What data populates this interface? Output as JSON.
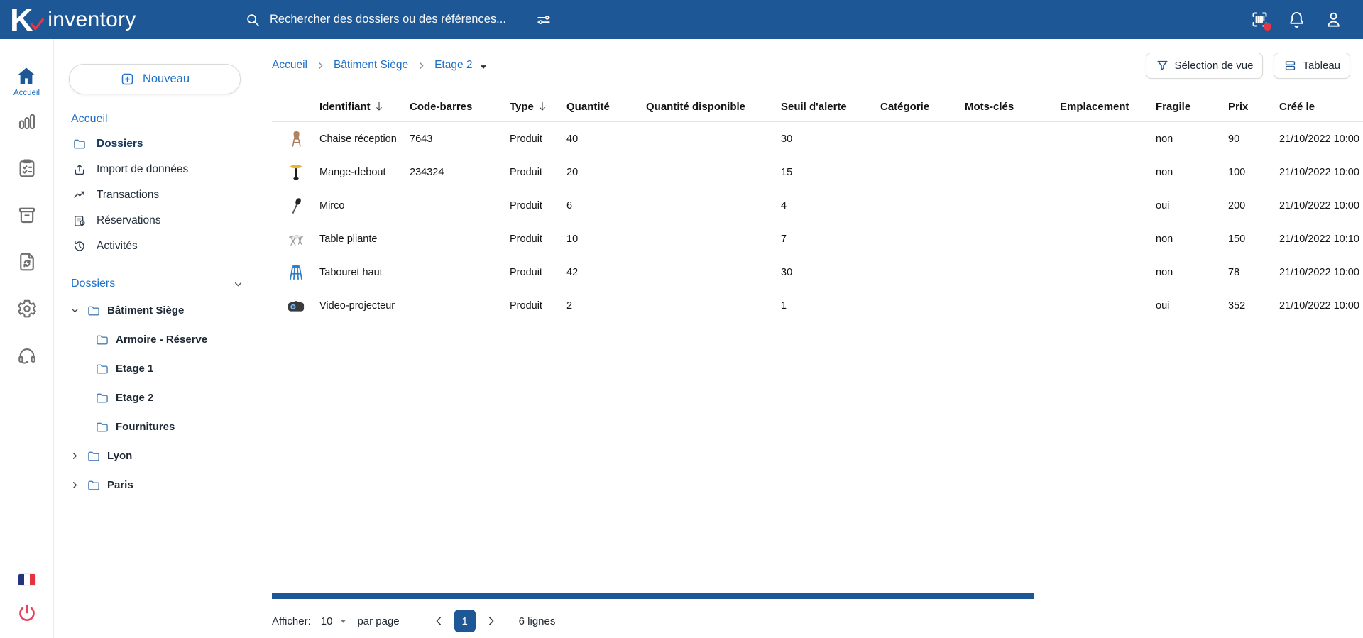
{
  "app": {
    "logo_k": "K",
    "logo_name": "inventory"
  },
  "topbar": {
    "search_placeholder": "Rechercher des dossiers ou des références...",
    "right_icons": [
      "barcode-scanner-icon",
      "notifications-bell-icon",
      "account-icon"
    ]
  },
  "rail": {
    "items": [
      {
        "icon": "home-icon",
        "label": "Accueil",
        "active": true
      },
      {
        "icon": "bar-chart-icon"
      },
      {
        "icon": "checklist-icon"
      },
      {
        "icon": "archive-box-icon"
      },
      {
        "icon": "sync-file-icon"
      },
      {
        "icon": "settings-gear-icon"
      },
      {
        "icon": "headset-icon"
      }
    ],
    "flag": "french-flag",
    "power": "power-icon"
  },
  "sidebar": {
    "new_button_label": "Nouveau",
    "nav_title": "Accueil",
    "nav_items": [
      {
        "icon": "folder-icon",
        "label": "Dossiers",
        "active": true
      },
      {
        "icon": "upload-icon",
        "label": "Import de données"
      },
      {
        "icon": "trend-icon",
        "label": "Transactions"
      },
      {
        "icon": "reservation-icon",
        "label": "Réservations"
      },
      {
        "icon": "history-icon",
        "label": "Activités"
      }
    ],
    "tree_title": "Dossiers",
    "tree": [
      {
        "label": "Bâtiment Siège",
        "expanded": true,
        "children": [
          {
            "label": "Armoire - Réserve"
          },
          {
            "label": "Etage 1"
          },
          {
            "label": "Etage 2"
          },
          {
            "label": "Fournitures"
          }
        ]
      },
      {
        "label": "Lyon",
        "expanded": false
      },
      {
        "label": "Paris",
        "expanded": false
      }
    ]
  },
  "breadcrumb": {
    "items": [
      "Accueil",
      "Bâtiment Siège",
      "Etage 2"
    ]
  },
  "toolbar": {
    "view_selection_label": "Sélection de vue",
    "table_view_label": "Tableau"
  },
  "table": {
    "columns": [
      {
        "key": "identifiant",
        "label": "Identifiant",
        "sorted": true
      },
      {
        "key": "code_barres",
        "label": "Code-barres"
      },
      {
        "key": "type",
        "label": "Type",
        "sorted": true
      },
      {
        "key": "quantite",
        "label": "Quantité"
      },
      {
        "key": "quantite_disponible",
        "label": "Quantité disponible"
      },
      {
        "key": "seuil_alerte",
        "label": "Seuil d'alerte"
      },
      {
        "key": "categorie",
        "label": "Catégorie"
      },
      {
        "key": "mots_cles",
        "label": "Mots-clés"
      },
      {
        "key": "emplacement",
        "label": "Emplacement"
      },
      {
        "key": "fragile",
        "label": "Fragile"
      },
      {
        "key": "prix",
        "label": "Prix"
      },
      {
        "key": "cree_le",
        "label": "Créé le"
      }
    ],
    "rows": [
      {
        "thumb": "chair-thumb",
        "identifiant": "Chaise réception",
        "code_barres": "7643",
        "type": "Produit",
        "quantite": "40",
        "quantite_disponible": "",
        "seuil_alerte": "30",
        "categorie": "",
        "mots_cles": "",
        "emplacement": "",
        "fragile": "non",
        "prix": "90",
        "cree_le": "21/10/2022 10:00"
      },
      {
        "thumb": "standing-table-thumb",
        "identifiant": "Mange-debout",
        "code_barres": "234324",
        "type": "Produit",
        "quantite": "20",
        "quantite_disponible": "",
        "seuil_alerte": "15",
        "categorie": "",
        "mots_cles": "",
        "emplacement": "",
        "fragile": "non",
        "prix": "100",
        "cree_le": "21/10/2022 10:00"
      },
      {
        "thumb": "microphone-thumb",
        "identifiant": "Mirco",
        "code_barres": "",
        "type": "Produit",
        "quantite": "6",
        "quantite_disponible": "",
        "seuil_alerte": "4",
        "categorie": "",
        "mots_cles": "",
        "emplacement": "",
        "fragile": "oui",
        "prix": "200",
        "cree_le": "21/10/2022 10:00"
      },
      {
        "thumb": "folding-table-thumb",
        "identifiant": "Table pliante",
        "code_barres": "",
        "type": "Produit",
        "quantite": "10",
        "quantite_disponible": "",
        "seuil_alerte": "7",
        "categorie": "",
        "mots_cles": "",
        "emplacement": "",
        "fragile": "non",
        "prix": "150",
        "cree_le": "21/10/2022 10:10"
      },
      {
        "thumb": "stool-thumb",
        "identifiant": "Tabouret haut",
        "code_barres": "",
        "type": "Produit",
        "quantite": "42",
        "quantite_disponible": "",
        "seuil_alerte": "30",
        "categorie": "",
        "mots_cles": "",
        "emplacement": "",
        "fragile": "non",
        "prix": "78",
        "cree_le": "21/10/2022 10:00"
      },
      {
        "thumb": "projector-thumb",
        "identifiant": "Video-projecteur",
        "code_barres": "",
        "type": "Produit",
        "quantite": "2",
        "quantite_disponible": "",
        "seuil_alerte": "1",
        "categorie": "",
        "mots_cles": "",
        "emplacement": "",
        "fragile": "oui",
        "prix": "352",
        "cree_le": "21/10/2022 10:00"
      }
    ]
  },
  "pagination": {
    "show_label": "Afficher:",
    "page_size": "10",
    "per_page_label": "par page",
    "current_page": "1",
    "total_label": "6 lignes"
  },
  "colors": {
    "topbar_blue": "#1d5796",
    "link_blue": "#1e6fc5",
    "accent_red": "#e23744",
    "power_red": "#e8425c"
  }
}
